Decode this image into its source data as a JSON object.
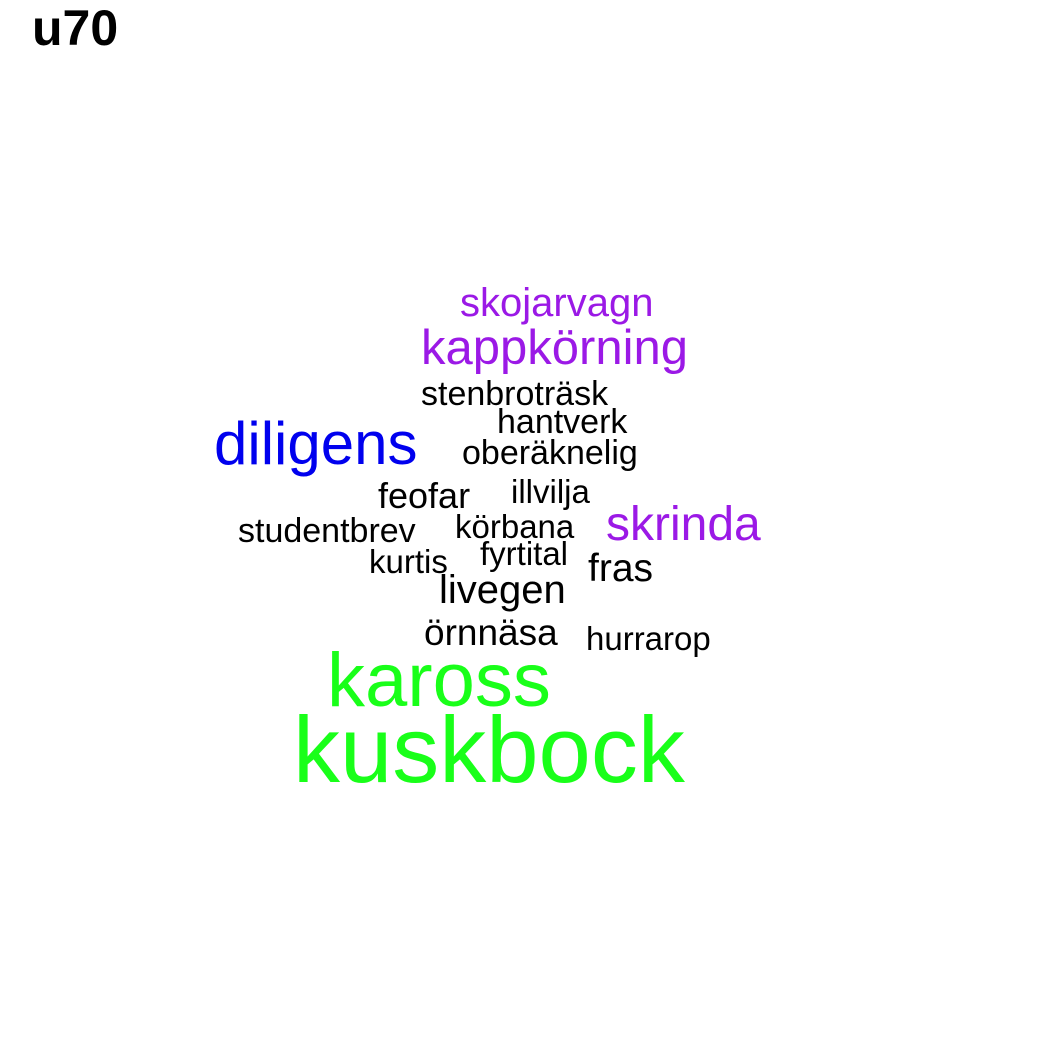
{
  "title": "u70",
  "colors": {
    "green": "#19ff19",
    "blue": "#0000ee",
    "purple": "#9b19e6",
    "black": "#000000"
  },
  "words": [
    {
      "text": "skojarvagn",
      "color": "#9b19e6"
    },
    {
      "text": "kappkörning",
      "color": "#9b19e6"
    },
    {
      "text": "stenbroträsk",
      "color": "#000000"
    },
    {
      "text": "hantverk",
      "color": "#000000"
    },
    {
      "text": "diligens",
      "color": "#0000ee"
    },
    {
      "text": "oberäknelig",
      "color": "#000000"
    },
    {
      "text": "feofar",
      "color": "#000000"
    },
    {
      "text": "illvilja",
      "color": "#000000"
    },
    {
      "text": "studentbrev",
      "color": "#000000"
    },
    {
      "text": "körbana",
      "color": "#000000"
    },
    {
      "text": "skrinda",
      "color": "#9b19e6"
    },
    {
      "text": "fyrtital",
      "color": "#000000"
    },
    {
      "text": "kurtis",
      "color": "#000000"
    },
    {
      "text": "fras",
      "color": "#000000"
    },
    {
      "text": "livegen",
      "color": "#000000"
    },
    {
      "text": "örnnäsa",
      "color": "#000000"
    },
    {
      "text": "hurrarop",
      "color": "#000000"
    },
    {
      "text": "kaross",
      "color": "#19ff19"
    },
    {
      "text": "kuskbock",
      "color": "#19ff19"
    }
  ]
}
